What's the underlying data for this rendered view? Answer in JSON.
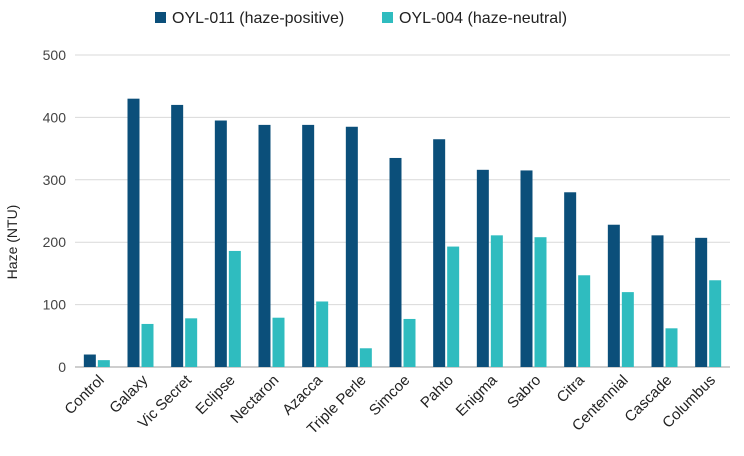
{
  "chart_data": {
    "type": "bar",
    "title": "",
    "xlabel": "",
    "ylabel": "Haze (NTU)",
    "ylim": [
      0,
      500
    ],
    "yticks": [
      0,
      100,
      200,
      300,
      400,
      500
    ],
    "grid": true,
    "legend_position": "top",
    "categories": [
      "Control",
      "Galaxy",
      "Vic Secret",
      "Eclipse",
      "Nectaron",
      "Azacca",
      "Triple Perle",
      "Simcoe",
      "Pahto",
      "Enigma",
      "Sabro",
      "Citra",
      "Centennial",
      "Cascade",
      "Columbus"
    ],
    "series": [
      {
        "name": "OYL-011 (haze-positive)",
        "color": "#0b4f7a",
        "values": [
          20,
          430,
          420,
          395,
          388,
          388,
          385,
          335,
          365,
          316,
          315,
          280,
          228,
          211,
          207
        ]
      },
      {
        "name": "OYL-004 (haze-neutral)",
        "color": "#2fbcbf",
        "values": [
          11,
          69,
          78,
          186,
          79,
          105,
          30,
          77,
          193,
          211,
          208,
          147,
          120,
          62,
          139
        ]
      }
    ]
  }
}
